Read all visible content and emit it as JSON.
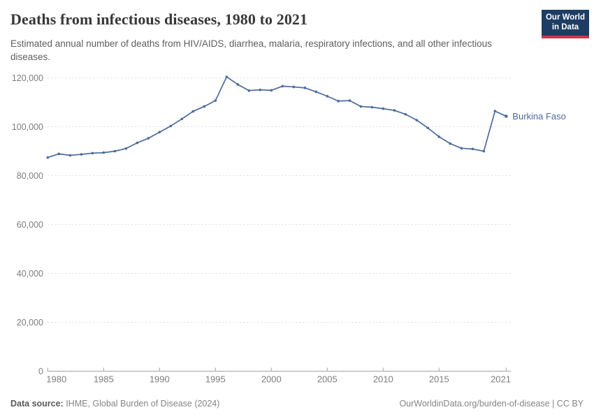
{
  "header": {
    "title": "Deaths from infectious diseases, 1980 to 2021",
    "subtitle": "Estimated annual number of deaths from HIV/AIDS, diarrhea, malaria, respiratory infections, and all other infectious diseases.",
    "logo": {
      "line1": "Our World",
      "line2": "in Data",
      "bg_color": "#1d3d63",
      "accent_color": "#d1354a"
    }
  },
  "chart_data": {
    "type": "line",
    "title": "Deaths from infectious diseases, 1980 to 2021",
    "xlabel": "",
    "ylabel": "",
    "xlim": [
      1980,
      2021
    ],
    "ylim": [
      0,
      120000
    ],
    "grid": "horizontal-dashed",
    "legend_position": "end-of-line-label",
    "x_ticks": [
      1980,
      1985,
      1990,
      1995,
      2000,
      2005,
      2010,
      2015,
      2021
    ],
    "x_tick_labels": [
      "1980",
      "1985",
      "1990",
      "1995",
      "2000",
      "2005",
      "2010",
      "2015",
      "2021"
    ],
    "y_ticks": [
      0,
      20000,
      40000,
      60000,
      80000,
      100000,
      120000
    ],
    "y_tick_labels": [
      "0",
      "20,000",
      "40,000",
      "60,000",
      "80,000",
      "100,000",
      "120,000"
    ],
    "series": [
      {
        "name": "Burkina Faso",
        "color": "#4C6A9C",
        "years": [
          1980,
          1981,
          1982,
          1983,
          1984,
          1985,
          1986,
          1987,
          1988,
          1989,
          1990,
          1991,
          1992,
          1993,
          1994,
          1995,
          1996,
          1997,
          1998,
          1999,
          2000,
          2001,
          2002,
          2003,
          2004,
          2005,
          2006,
          2007,
          2008,
          2009,
          2010,
          2011,
          2012,
          2013,
          2014,
          2015,
          2016,
          2017,
          2018,
          2019,
          2020,
          2021
        ],
        "values": [
          87400,
          88900,
          88300,
          88700,
          89200,
          89400,
          90000,
          91100,
          93400,
          95300,
          97800,
          100300,
          103200,
          106300,
          108300,
          110700,
          120400,
          117300,
          114800,
          115100,
          114900,
          116600,
          116300,
          115900,
          114300,
          112500,
          110500,
          110700,
          108300,
          108000,
          107400,
          106700,
          105100,
          102700,
          99500,
          95900,
          93100,
          91200,
          90900,
          90000,
          106400,
          104300
        ]
      }
    ]
  },
  "footer": {
    "datasource_label": "Data source:",
    "datasource_value": " IHME, Global Burden of Disease (2024)",
    "link": "OurWorldinData.org/burden-of-disease | CC BY"
  }
}
